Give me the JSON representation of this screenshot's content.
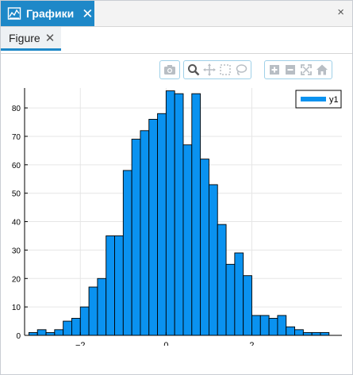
{
  "panel": {
    "tab_label": "Графики",
    "close_symbol": "✕",
    "window_close_symbol": "×"
  },
  "document": {
    "tab_label": "Figure",
    "close_symbol": "✕"
  },
  "modebar": {
    "groups": [
      [
        "camera-icon"
      ],
      [
        "zoom-icon",
        "pan-icon",
        "box-select-icon",
        "lasso-icon"
      ],
      [
        "zoom-in-icon",
        "zoom-out-icon",
        "autoscale-icon",
        "home-icon"
      ]
    ]
  },
  "colors": {
    "accent": "#1e88c8",
    "bar_fill": "#0a92f0",
    "bar_stroke": "#000000",
    "modebar_icon": "#b8bec4"
  },
  "chart_data": {
    "type": "bar",
    "title": "",
    "xlabel": "",
    "ylabel": "",
    "bin_width": 0.2,
    "bin_start": -3.2,
    "values": [
      1,
      2,
      1,
      2,
      5,
      6,
      10,
      17,
      20,
      35,
      35,
      58,
      69,
      72,
      76,
      78,
      86,
      85,
      67,
      85,
      62,
      53,
      39,
      25,
      29,
      21,
      7,
      7,
      6,
      7,
      3,
      2,
      1,
      1,
      1
    ],
    "xlim": [
      -3.3,
      4.1
    ],
    "ylim": [
      0,
      87
    ],
    "xticks": [
      -2,
      0,
      2
    ],
    "xtick_labels": [
      "−2",
      "0",
      "2"
    ],
    "yticks": [
      0,
      10,
      20,
      30,
      40,
      50,
      60,
      70,
      80
    ],
    "ytick_labels": [
      "0",
      "10",
      "20",
      "30",
      "40",
      "50",
      "60",
      "70",
      "80"
    ],
    "grid": true,
    "legend": {
      "placement": "top-right",
      "entries": [
        "y1"
      ]
    }
  }
}
